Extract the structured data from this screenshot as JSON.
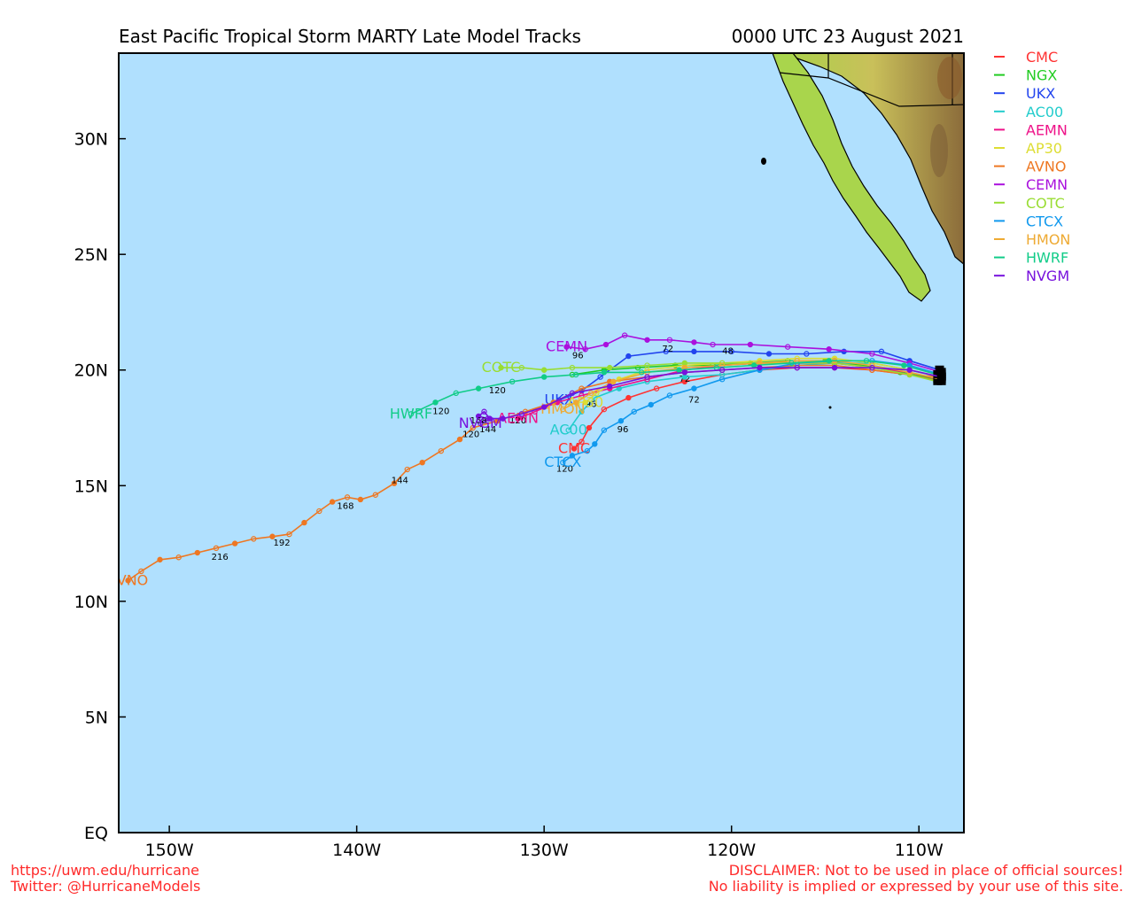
{
  "header": {
    "title": "East Pacific Tropical Storm MARTY Late Model Tracks",
    "datetime": "0000 UTC 23 August 2021"
  },
  "map": {
    "lon_range": [
      -152.7,
      -107.6
    ],
    "lat_range": [
      0,
      33.7
    ],
    "ocean_color": "#b0e0fe",
    "lon_ticks": [
      {
        "value": -150,
        "label": "150W"
      },
      {
        "value": -140,
        "label": "140W"
      },
      {
        "value": -130,
        "label": "130W"
      },
      {
        "value": -120,
        "label": "120W"
      },
      {
        "value": -110,
        "label": "110W"
      }
    ],
    "lat_ticks": [
      {
        "value": 0,
        "label": "EQ"
      },
      {
        "value": 5,
        "label": "5N"
      },
      {
        "value": 10,
        "label": "10N"
      },
      {
        "value": 15,
        "label": "15N"
      },
      {
        "value": 20,
        "label": "20N"
      },
      {
        "value": 25,
        "label": "25N"
      },
      {
        "value": 30,
        "label": "30N"
      }
    ]
  },
  "legend": [
    {
      "name": "CMC",
      "color": "#ff3333"
    },
    {
      "name": "NGX",
      "color": "#22cc22"
    },
    {
      "name": "UKX",
      "color": "#2244ee"
    },
    {
      "name": "AC00",
      "color": "#22cccc"
    },
    {
      "name": "AEMN",
      "color": "#ee1188"
    },
    {
      "name": "AP30",
      "color": "#dddd33"
    },
    {
      "name": "AVNO",
      "color": "#ee7722"
    },
    {
      "name": "CEMN",
      "color": "#aa11dd"
    },
    {
      "name": "COTC",
      "color": "#99dd33"
    },
    {
      "name": "CTCX",
      "color": "#1199ee"
    },
    {
      "name": "HMON",
      "color": "#eeaa33"
    },
    {
      "name": "HWRF",
      "color": "#11cc88"
    },
    {
      "name": "NVGM",
      "color": "#7711dd"
    }
  ],
  "tracks": [
    {
      "name": "CMC",
      "color": "#ff3333",
      "label": "CMC",
      "points": [
        [
          -108.8,
          19.7
        ],
        [
          -110.5,
          19.8
        ],
        [
          -112.5,
          20.0
        ],
        [
          -114.5,
          20.1
        ],
        [
          -116.5,
          20.1
        ],
        [
          -118.5,
          20.0
        ],
        [
          -120.5,
          19.8
        ],
        [
          -122.5,
          19.5
        ],
        [
          -124.0,
          19.2
        ],
        [
          -125.5,
          18.8
        ],
        [
          -126.8,
          18.3
        ],
        [
          -127.6,
          17.5
        ],
        [
          -128.0,
          16.9
        ],
        [
          -128.4,
          16.6
        ]
      ],
      "hours": [
        {
          "lon": -122.5,
          "lat": 19.5,
          "text": "72"
        }
      ]
    },
    {
      "name": "NGX",
      "color": "#22cc22",
      "label": "",
      "points": [
        [
          -109.0,
          19.6
        ],
        [
          -111.0,
          19.9
        ],
        [
          -113.0,
          20.2
        ],
        [
          -115.0,
          20.4
        ],
        [
          -117.0,
          20.4
        ],
        [
          -119.0,
          20.3
        ],
        [
          -121.0,
          20.2
        ],
        [
          -123.0,
          20.2
        ],
        [
          -125.0,
          20.1
        ],
        [
          -126.8,
          20.0
        ],
        [
          -128.5,
          19.8
        ]
      ],
      "hours": []
    },
    {
      "name": "UKX",
      "color": "#2244ee",
      "label": "UKX",
      "points": [
        [
          -108.9,
          20.0
        ],
        [
          -110.5,
          20.4
        ],
        [
          -112.0,
          20.8
        ],
        [
          -114.0,
          20.8
        ],
        [
          -116.0,
          20.7
        ],
        [
          -118.0,
          20.7
        ],
        [
          -120.0,
          20.8
        ],
        [
          -122.0,
          20.8
        ],
        [
          -123.5,
          20.8
        ],
        [
          -125.5,
          20.6
        ],
        [
          -127.0,
          19.7
        ],
        [
          -128.0,
          19.1
        ],
        [
          -129.2,
          18.7
        ]
      ],
      "hours": [
        {
          "lon": -120.2,
          "lat": 20.7,
          "text": "48"
        },
        {
          "lon": -123.4,
          "lat": 20.8,
          "text": "72"
        }
      ]
    },
    {
      "name": "AC00",
      "color": "#22cccc",
      "label": "AC00",
      "points": [
        [
          -108.9,
          19.7
        ],
        [
          -110.5,
          20.0
        ],
        [
          -112.5,
          20.3
        ],
        [
          -114.5,
          20.3
        ],
        [
          -116.5,
          20.2
        ],
        [
          -118.5,
          20.0
        ],
        [
          -120.5,
          19.8
        ],
        [
          -122.5,
          19.7
        ],
        [
          -124.5,
          19.5
        ],
        [
          -126.0,
          19.2
        ],
        [
          -127.3,
          18.8
        ],
        [
          -128.0,
          18.2
        ],
        [
          -128.7,
          17.4
        ]
      ],
      "hours": [
        {
          "lon": -127.5,
          "lat": 18.4,
          "text": "96"
        }
      ]
    },
    {
      "name": "AEMN",
      "color": "#ee1188",
      "label": "AEMN",
      "points": [
        [
          -108.9,
          19.6
        ],
        [
          -110.5,
          19.9
        ],
        [
          -112.5,
          20.1
        ],
        [
          -114.5,
          20.3
        ],
        [
          -116.5,
          20.3
        ],
        [
          -118.5,
          20.3
        ],
        [
          -120.5,
          20.2
        ],
        [
          -122.5,
          20.0
        ],
        [
          -124.5,
          19.6
        ],
        [
          -126.5,
          19.2
        ],
        [
          -128.0,
          18.9
        ],
        [
          -129.3,
          18.6
        ],
        [
          -130.5,
          18.2
        ],
        [
          -131.4,
          17.9
        ]
      ],
      "hours": [
        {
          "lon": -131.4,
          "lat": 17.7,
          "text": "120"
        }
      ]
    },
    {
      "name": "AP30",
      "color": "#dddd33",
      "label": "AP30",
      "points": [
        [
          -108.8,
          19.7
        ],
        [
          -110.5,
          20.0
        ],
        [
          -112.5,
          20.3
        ],
        [
          -114.5,
          20.5
        ],
        [
          -116.5,
          20.5
        ],
        [
          -118.5,
          20.4
        ],
        [
          -120.5,
          20.3
        ],
        [
          -122.5,
          20.2
        ],
        [
          -124.5,
          20.0
        ],
        [
          -126.0,
          19.6
        ],
        [
          -127.2,
          19.0
        ],
        [
          -127.8,
          18.6
        ]
      ],
      "hours": []
    },
    {
      "name": "AVNO",
      "color": "#ee7722",
      "label": "AVNO",
      "points": [
        [
          -108.8,
          19.5
        ],
        [
          -110.5,
          19.8
        ],
        [
          -112.5,
          20.0
        ],
        [
          -114.5,
          20.2
        ],
        [
          -116.5,
          20.2
        ],
        [
          -118.5,
          20.1
        ],
        [
          -120.5,
          20.0
        ],
        [
          -122.5,
          19.9
        ],
        [
          -124.5,
          19.7
        ],
        [
          -126.5,
          19.5
        ],
        [
          -128.0,
          19.2
        ],
        [
          -129.5,
          18.6
        ],
        [
          -131.0,
          18.2
        ],
        [
          -132.5,
          17.8
        ],
        [
          -133.8,
          17.5
        ],
        [
          -134.5,
          17.0
        ],
        [
          -135.5,
          16.5
        ],
        [
          -136.5,
          16.0
        ],
        [
          -137.3,
          15.7
        ],
        [
          -138.0,
          15.1
        ],
        [
          -139.0,
          14.6
        ],
        [
          -139.8,
          14.4
        ],
        [
          -140.5,
          14.5
        ],
        [
          -141.3,
          14.3
        ],
        [
          -142.0,
          13.9
        ],
        [
          -142.8,
          13.4
        ],
        [
          -143.6,
          12.9
        ],
        [
          -144.5,
          12.8
        ],
        [
          -145.5,
          12.7
        ],
        [
          -146.5,
          12.5
        ],
        [
          -147.5,
          12.3
        ],
        [
          -148.5,
          12.1
        ],
        [
          -149.5,
          11.9
        ],
        [
          -150.5,
          11.8
        ],
        [
          -151.5,
          11.3
        ],
        [
          -152.2,
          10.9
        ]
      ],
      "hours": [
        {
          "lon": -133.9,
          "lat": 17.1,
          "text": "120"
        },
        {
          "lon": -137.7,
          "lat": 15.1,
          "text": "144"
        },
        {
          "lon": -140.6,
          "lat": 14.0,
          "text": "168"
        },
        {
          "lon": -144.0,
          "lat": 12.4,
          "text": "192"
        },
        {
          "lon": -147.3,
          "lat": 11.8,
          "text": "216"
        }
      ]
    },
    {
      "name": "CEMN",
      "color": "#aa11dd",
      "label": "CEMN",
      "points": [
        [
          -108.8,
          19.9
        ],
        [
          -110.5,
          20.3
        ],
        [
          -112.5,
          20.7
        ],
        [
          -114.8,
          20.9
        ],
        [
          -117.0,
          21.0
        ],
        [
          -119.0,
          21.1
        ],
        [
          -121.0,
          21.1
        ],
        [
          -122.0,
          21.2
        ],
        [
          -123.3,
          21.3
        ],
        [
          -124.5,
          21.3
        ],
        [
          -125.7,
          21.5
        ],
        [
          -126.7,
          21.1
        ],
        [
          -127.8,
          20.9
        ],
        [
          -128.8,
          21.0
        ]
      ],
      "hours": [
        {
          "lon": -128.2,
          "lat": 20.5,
          "text": "96"
        }
      ]
    },
    {
      "name": "COTC",
      "color": "#99dd33",
      "label": "COTC",
      "points": [
        [
          -109.0,
          19.5
        ],
        [
          -110.5,
          19.8
        ],
        [
          -112.5,
          20.1
        ],
        [
          -114.5,
          20.3
        ],
        [
          -116.5,
          20.3
        ],
        [
          -118.5,
          20.3
        ],
        [
          -120.5,
          20.3
        ],
        [
          -122.5,
          20.3
        ],
        [
          -124.5,
          20.2
        ],
        [
          -126.5,
          20.1
        ],
        [
          -128.5,
          20.1
        ],
        [
          -130.0,
          20.0
        ],
        [
          -131.2,
          20.1
        ],
        [
          -132.3,
          20.1
        ]
      ],
      "hours": []
    },
    {
      "name": "CTCX",
      "color": "#1199ee",
      "label": "CTCX",
      "points": [
        [
          -108.8,
          19.8
        ],
        [
          -110.5,
          20.2
        ],
        [
          -112.5,
          20.4
        ],
        [
          -114.5,
          20.4
        ],
        [
          -116.5,
          20.3
        ],
        [
          -118.5,
          20.0
        ],
        [
          -120.5,
          19.6
        ],
        [
          -122.0,
          19.2
        ],
        [
          -123.3,
          18.9
        ],
        [
          -124.3,
          18.5
        ],
        [
          -125.2,
          18.2
        ],
        [
          -125.9,
          17.8
        ],
        [
          -126.8,
          17.4
        ],
        [
          -127.3,
          16.8
        ],
        [
          -127.7,
          16.5
        ],
        [
          -128.5,
          16.3
        ],
        [
          -129.0,
          16.0
        ]
      ],
      "hours": [
        {
          "lon": -128.9,
          "lat": 15.6,
          "text": "120"
        },
        {
          "lon": -125.8,
          "lat": 17.3,
          "text": "96"
        },
        {
          "lon": -122.0,
          "lat": 18.6,
          "text": "72"
        }
      ]
    },
    {
      "name": "HMON",
      "color": "#eeaa33",
      "label": "HMON",
      "points": [
        [
          -108.8,
          19.6
        ],
        [
          -110.5,
          19.9
        ],
        [
          -112.5,
          20.2
        ],
        [
          -114.5,
          20.4
        ],
        [
          -116.5,
          20.4
        ],
        [
          -118.5,
          20.3
        ],
        [
          -120.5,
          20.2
        ],
        [
          -122.5,
          20.1
        ],
        [
          -124.5,
          19.9
        ],
        [
          -126.3,
          19.5
        ],
        [
          -127.5,
          19.0
        ],
        [
          -128.3,
          18.6
        ],
        [
          -129.0,
          18.3
        ]
      ],
      "hours": []
    },
    {
      "name": "HWRF",
      "color": "#11cc88",
      "label": "HWRF",
      "points": [
        [
          -109.0,
          19.8
        ],
        [
          -110.8,
          20.2
        ],
        [
          -112.8,
          20.4
        ],
        [
          -114.8,
          20.4
        ],
        [
          -116.8,
          20.3
        ],
        [
          -118.8,
          20.2
        ],
        [
          -120.8,
          20.1
        ],
        [
          -122.8,
          20.0
        ],
        [
          -124.8,
          19.9
        ],
        [
          -126.8,
          19.9
        ],
        [
          -128.3,
          19.8
        ],
        [
          -130.0,
          19.7
        ],
        [
          -131.7,
          19.5
        ],
        [
          -133.5,
          19.2
        ],
        [
          -134.7,
          19.0
        ],
        [
          -135.8,
          18.6
        ],
        [
          -137.1,
          18.1
        ]
      ],
      "hours": [
        {
          "lon": -135.5,
          "lat": 18.1,
          "text": "120"
        },
        {
          "lon": -132.5,
          "lat": 19.0,
          "text": "120"
        }
      ]
    },
    {
      "name": "NVGM",
      "color": "#7711dd",
      "label": "NVGM",
      "points": [
        [
          -108.8,
          19.7
        ],
        [
          -110.5,
          20.0
        ],
        [
          -112.5,
          20.1
        ],
        [
          -114.5,
          20.1
        ],
        [
          -116.5,
          20.1
        ],
        [
          -118.5,
          20.1
        ],
        [
          -120.5,
          20.0
        ],
        [
          -122.5,
          19.9
        ],
        [
          -124.5,
          19.7
        ],
        [
          -126.5,
          19.3
        ],
        [
          -128.5,
          19.0
        ],
        [
          -130.0,
          18.4
        ],
        [
          -131.2,
          18.1
        ],
        [
          -132.2,
          17.9
        ],
        [
          -133.0,
          17.9
        ],
        [
          -133.5,
          18.0
        ],
        [
          -133.2,
          18.2
        ],
        [
          -132.9,
          17.9
        ],
        [
          -133.4,
          17.7
        ]
      ],
      "hours": [
        {
          "lon": -133.5,
          "lat": 17.7,
          "text": "168"
        },
        {
          "lon": -133.0,
          "lat": 17.3,
          "text": "144"
        }
      ]
    }
  ],
  "footer": {
    "url": "https://uwm.edu/hurricane",
    "twitter": "Twitter: @HurricaneModels",
    "disclaimer_1": "DISCLAIMER: Not to be used in place of official sources!",
    "disclaimer_2": "No liability is implied or expressed by your use of this site."
  }
}
